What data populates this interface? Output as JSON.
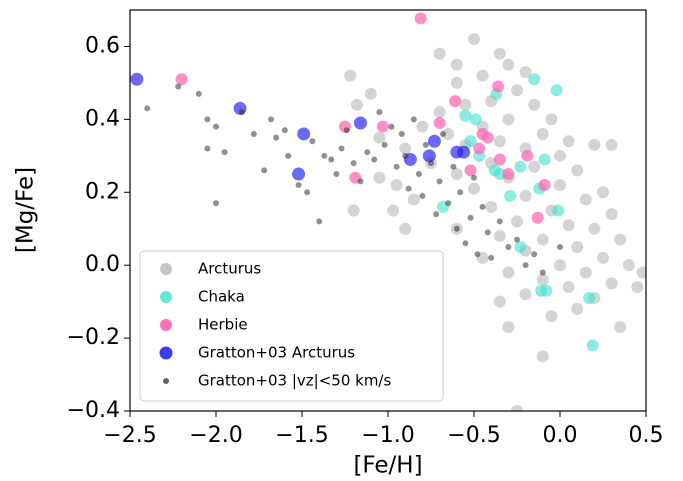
{
  "chart_data": {
    "type": "scatter",
    "x_label": "[Fe/H]",
    "y_label": "[Mg/Fe]",
    "xlim": [
      -2.5,
      0.5
    ],
    "ylim": [
      -0.4,
      0.7
    ],
    "xticks": [
      {
        "value": -2.5,
        "label": "−2.5"
      },
      {
        "value": -2.0,
        "label": "−2.0"
      },
      {
        "value": -1.5,
        "label": "−1.5"
      },
      {
        "value": -1.0,
        "label": "−1.0"
      },
      {
        "value": -0.5,
        "label": "−0.5"
      },
      {
        "value": 0.0,
        "label": "0.0"
      },
      0.5
    ],
    "yticks": [
      {
        "value": -0.4,
        "label": "−0.4"
      },
      {
        "value": -0.2,
        "label": "−0.2"
      },
      {
        "value": 0.0,
        "label": "0.0"
      },
      0.2,
      0.4,
      0.6
    ],
    "legend": "lower left",
    "series": [
      {
        "name": "Arcturus",
        "color": "#b0b0b0",
        "opacity": 0.55,
        "size": 6,
        "x": [
          -0.5,
          -0.35,
          -0.3,
          -0.2,
          -0.45,
          -0.6,
          -0.25,
          -0.4,
          -0.55,
          -0.7,
          -0.15,
          -0.05,
          -0.3,
          -0.45,
          -0.8,
          -0.65,
          -0.1,
          0.05,
          -0.35,
          -0.55,
          -0.2,
          0.0,
          0.2,
          -0.9,
          -0.75,
          -0.4,
          -0.15,
          0.1,
          -0.6,
          -0.3,
          0.0,
          0.25,
          -0.5,
          -0.2,
          0.15,
          -0.85,
          -0.4,
          -0.05,
          0.3,
          -0.25,
          0.05,
          0.2,
          -0.6,
          -0.35,
          -0.1,
          0.35,
          0.1,
          -0.2,
          0.25,
          -0.45,
          0.0,
          0.4,
          0.15,
          -0.3,
          -0.1,
          0.3,
          0.05,
          0.45,
          -0.2,
          0.2,
          -0.35,
          0.1,
          -0.05,
          -0.3,
          0.35,
          -0.1,
          -0.25,
          -1.22,
          -1.1,
          -1.18,
          -1.05,
          -1.2,
          -0.97,
          -1.05,
          -0.9,
          -0.7,
          -0.6,
          0.3,
          0.48,
          -0.95
        ],
        "y": [
          0.62,
          0.58,
          0.55,
          0.53,
          0.52,
          0.5,
          0.48,
          0.45,
          0.44,
          0.42,
          0.44,
          0.4,
          0.4,
          0.38,
          0.38,
          0.36,
          0.36,
          0.34,
          0.34,
          0.33,
          0.32,
          0.3,
          0.33,
          0.32,
          0.28,
          0.28,
          0.27,
          0.26,
          0.25,
          0.24,
          0.22,
          0.2,
          0.21,
          0.19,
          0.18,
          0.18,
          0.16,
          0.15,
          0.14,
          0.12,
          0.11,
          0.1,
          0.1,
          0.08,
          0.07,
          0.07,
          0.05,
          0.04,
          0.02,
          0.02,
          0.0,
          0.0,
          -0.02,
          -0.02,
          -0.04,
          -0.05,
          -0.06,
          -0.06,
          -0.08,
          -0.09,
          -0.1,
          -0.12,
          -0.14,
          -0.17,
          -0.17,
          -0.25,
          -0.4,
          0.52,
          0.47,
          0.44,
          0.35,
          0.15,
          0.15,
          0.24,
          0.1,
          0.58,
          0.55,
          0.33,
          -0.02,
          0.22
        ]
      },
      {
        "name": "Chaka",
        "color": "#40e0d0",
        "opacity": 0.6,
        "size": 6,
        "x": [
          -0.37,
          -0.15,
          -0.02,
          -0.55,
          -0.68,
          -0.47,
          -0.35,
          -0.23,
          -0.09,
          0.17,
          0.19,
          -0.08,
          -0.11,
          -0.23,
          -0.29,
          -0.38,
          -0.52,
          -0.12,
          -0.01,
          -0.49
        ],
        "y": [
          0.47,
          0.51,
          0.48,
          0.41,
          0.16,
          0.3,
          0.25,
          0.27,
          0.29,
          -0.09,
          -0.22,
          -0.07,
          -0.07,
          0.05,
          0.19,
          0.26,
          0.34,
          0.21,
          0.15,
          0.4
        ]
      },
      {
        "name": "Herbie",
        "color": "#ff69b4",
        "opacity": 0.75,
        "size": 6,
        "x": [
          -0.81,
          -2.2,
          -0.36,
          -0.61,
          -1.25,
          -1.03,
          -1.19,
          -0.7,
          -0.45,
          -0.42,
          -0.52,
          -0.35,
          -0.19,
          -0.09,
          -0.13,
          -0.3,
          -0.47
        ],
        "y": [
          0.677,
          0.51,
          0.49,
          0.45,
          0.38,
          0.38,
          0.24,
          0.39,
          0.36,
          0.35,
          0.26,
          0.29,
          0.3,
          0.22,
          0.13,
          0.25,
          0.32
        ]
      },
      {
        "name": "Gratton+03 Arcturus",
        "color": "#1a1aee",
        "opacity": 0.65,
        "size": 6.5,
        "x": [
          -2.46,
          -1.86,
          -1.49,
          -1.52,
          -1.16,
          -0.87,
          -0.73,
          -0.76,
          -0.6,
          -0.56
        ],
        "y": [
          0.51,
          0.43,
          0.36,
          0.25,
          0.39,
          0.29,
          0.34,
          0.3,
          0.31,
          0.31
        ]
      },
      {
        "name": "Gratton+03 |vz|<50 km/s",
        "color": "#222222",
        "opacity": 0.5,
        "size": 3,
        "x": [
          -2.4,
          -2.22,
          -2.1,
          -2.05,
          -2.0,
          -1.95,
          -2.05,
          -2.0,
          -1.85,
          -1.78,
          -1.72,
          -1.68,
          -1.65,
          -1.6,
          -1.58,
          -1.52,
          -1.47,
          -1.44,
          -1.4,
          -1.37,
          -1.33,
          -1.3,
          -1.27,
          -1.24,
          -1.2,
          -1.16,
          -1.12,
          -1.08,
          -1.05,
          -1.02,
          -0.98,
          -0.95,
          -0.92,
          -0.9,
          -0.88,
          -0.85,
          -0.82,
          -0.8,
          -0.78,
          -0.75,
          -0.72,
          -0.7,
          -0.68,
          -0.65,
          -0.62,
          -0.6,
          -0.58,
          -0.55,
          -0.52,
          -0.5,
          -0.48,
          -0.45,
          -0.42,
          -0.4,
          -0.35,
          -0.3,
          -0.25,
          -0.2,
          -0.15,
          -0.1,
          0.0
        ],
        "y": [
          0.43,
          0.49,
          0.47,
          0.4,
          0.38,
          0.31,
          0.32,
          0.17,
          0.42,
          0.36,
          0.26,
          0.4,
          0.35,
          0.37,
          0.3,
          0.22,
          0.2,
          0.34,
          0.12,
          0.3,
          0.29,
          0.25,
          0.32,
          0.37,
          0.28,
          0.23,
          0.31,
          0.29,
          0.42,
          0.33,
          0.38,
          0.27,
          0.36,
          0.3,
          0.21,
          0.4,
          0.25,
          0.19,
          0.33,
          0.28,
          0.14,
          0.23,
          0.36,
          0.17,
          0.27,
          0.1,
          0.2,
          0.06,
          0.13,
          0.24,
          0.03,
          0.16,
          0.09,
          0.02,
          0.12,
          0.05,
          0.07,
          0.0,
          0.03,
          -0.02,
          0.05
        ]
      }
    ]
  }
}
